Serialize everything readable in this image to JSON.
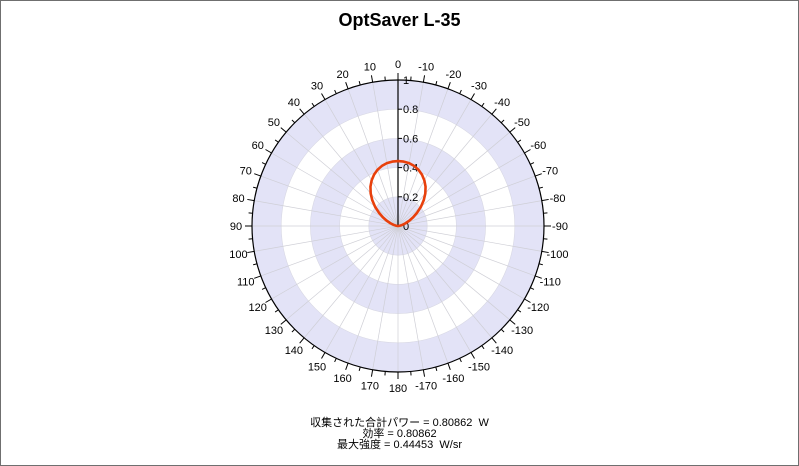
{
  "chart_data": {
    "type": "polar",
    "title": "OptSaver L-35",
    "r_range": [
      0,
      1
    ],
    "r_ticks": [
      "0",
      "0.2",
      "0.4",
      "0.6",
      "0.8",
      "1"
    ],
    "angle_ticks": [
      "0",
      "-10",
      "-20",
      "-30",
      "-40",
      "-50",
      "-60",
      "-70",
      "-80",
      "-90",
      "-100",
      "-110",
      "-120",
      "-130",
      "-140",
      "-150",
      "-160",
      "-170",
      "180",
      "170",
      "160",
      "150",
      "140",
      "130",
      "120",
      "110",
      "100",
      "90",
      "80",
      "70",
      "60",
      "50",
      "40",
      "30",
      "20",
      "10"
    ],
    "grid": true,
    "series": [
      {
        "color": "#e8400c",
        "angles_deg": [
          0,
          5,
          10,
          15,
          20,
          25,
          30,
          35,
          40,
          45,
          50,
          55,
          60,
          65,
          70,
          75,
          80,
          85,
          90
        ],
        "r": [
          0.445,
          0.443,
          0.437,
          0.426,
          0.41,
          0.388,
          0.361,
          0.329,
          0.291,
          0.249,
          0.205,
          0.16,
          0.12,
          0.085,
          0.055,
          0.032,
          0.016,
          0.006,
          0
        ],
        "symmetric": true
      }
    ],
    "ring_colors": [
      "#e3e3f7",
      "#ffffff"
    ]
  },
  "stats": [
    "収集された合計パワー = 0.80862  W",
    "効率 = 0.80862",
    "最大強度 = 0.44453  W/sr"
  ]
}
